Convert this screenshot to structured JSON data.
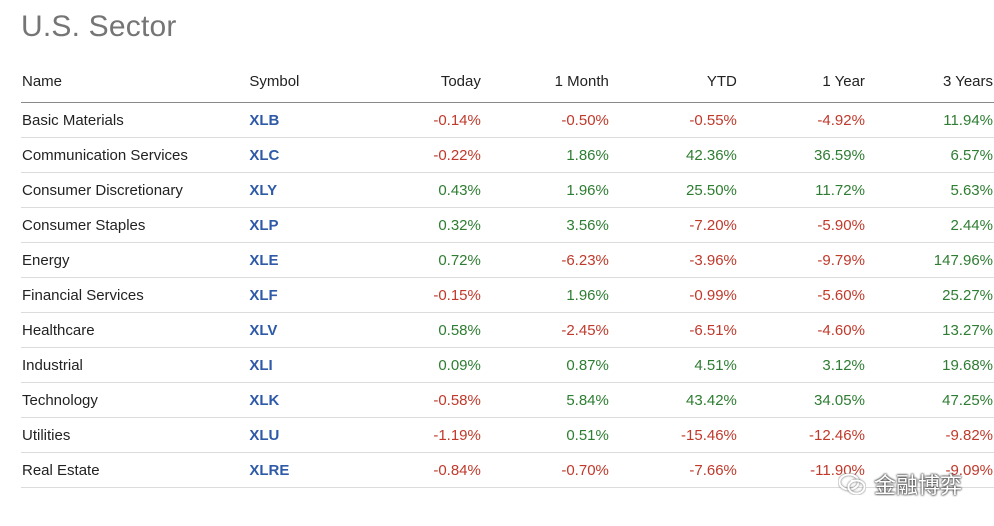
{
  "page": {
    "title": "U.S. Sector"
  },
  "table": {
    "headers": [
      "Name",
      "Symbol",
      "Today",
      "1 Month",
      "YTD",
      "1 Year",
      "3 Years"
    ],
    "rows": [
      {
        "name": "Basic Materials",
        "symbol": "XLB",
        "today": "-0.14%",
        "month": "-0.50%",
        "ytd": "-0.55%",
        "year": "-4.92%",
        "three_years": "11.94%"
      },
      {
        "name": "Communication Services",
        "symbol": "XLC",
        "today": "-0.22%",
        "month": "1.86%",
        "ytd": "42.36%",
        "year": "36.59%",
        "three_years": "6.57%"
      },
      {
        "name": "Consumer Discretionary",
        "symbol": "XLY",
        "today": "0.43%",
        "month": "1.96%",
        "ytd": "25.50%",
        "year": "11.72%",
        "three_years": "5.63%"
      },
      {
        "name": "Consumer Staples",
        "symbol": "XLP",
        "today": "0.32%",
        "month": "3.56%",
        "ytd": "-7.20%",
        "year": "-5.90%",
        "three_years": "2.44%"
      },
      {
        "name": "Energy",
        "symbol": "XLE",
        "today": "0.72%",
        "month": "-6.23%",
        "ytd": "-3.96%",
        "year": "-9.79%",
        "three_years": "147.96%"
      },
      {
        "name": "Financial Services",
        "symbol": "XLF",
        "today": "-0.15%",
        "month": "1.96%",
        "ytd": "-0.99%",
        "year": "-5.60%",
        "three_years": "25.27%"
      },
      {
        "name": "Healthcare",
        "symbol": "XLV",
        "today": "0.58%",
        "month": "-2.45%",
        "ytd": "-6.51%",
        "year": "-4.60%",
        "three_years": "13.27%"
      },
      {
        "name": "Industrial",
        "symbol": "XLI",
        "today": "0.09%",
        "month": "0.87%",
        "ytd": "4.51%",
        "year": "3.12%",
        "three_years": "19.68%"
      },
      {
        "name": "Technology",
        "symbol": "XLK",
        "today": "-0.58%",
        "month": "5.84%",
        "ytd": "43.42%",
        "year": "34.05%",
        "three_years": "47.25%"
      },
      {
        "name": "Utilities",
        "symbol": "XLU",
        "today": "-1.19%",
        "month": "0.51%",
        "ytd": "-15.46%",
        "year": "-12.46%",
        "three_years": "-9.82%"
      },
      {
        "name": "Real Estate",
        "symbol": "XLRE",
        "today": "-0.84%",
        "month": "-0.70%",
        "ytd": "-7.66%",
        "year": "-11.90%",
        "three_years": "-9.09%"
      }
    ]
  },
  "watermark": {
    "text": "金融博弈",
    "icon": "wechat-icon"
  },
  "colors": {
    "positive": "#2e7d32",
    "negative": "#c0392b",
    "symbol_link": "#2f5aa8",
    "title": "#757575"
  }
}
